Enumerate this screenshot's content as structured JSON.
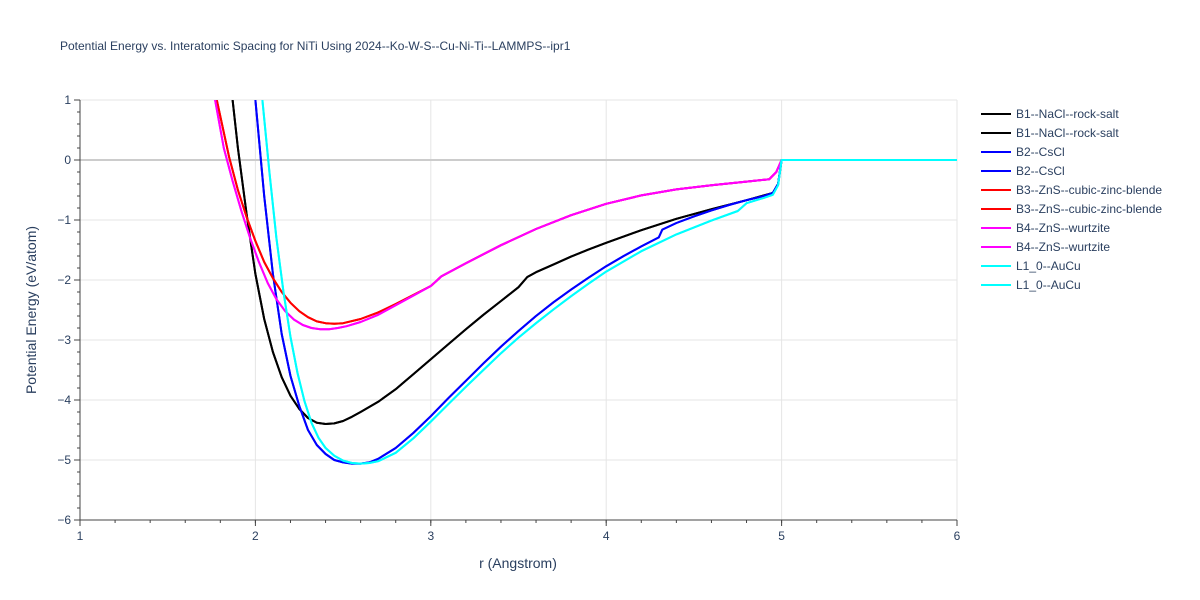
{
  "chart_data": {
    "type": "line",
    "title": "Potential Energy vs. Interatomic Spacing for NiTi Using 2024--Ko-W-S--Cu-Ni-Ti--LAMMPS--ipr1",
    "xlabel": "r (Angstrom)",
    "ylabel": "Potential Energy (eV/atom)",
    "xlim": [
      1,
      6
    ],
    "ylim": [
      -6,
      1
    ],
    "xticks": [
      "1",
      "2",
      "3",
      "4",
      "5",
      "6"
    ],
    "yticks": [
      "1",
      "0",
      "−1",
      "−2",
      "−3",
      "−4",
      "−5",
      "−6"
    ],
    "grid": true,
    "legend_position": "right",
    "series": [
      {
        "name": "B1--NaCl--rock-salt",
        "color": "#000000",
        "x": [
          1.87,
          1.9,
          1.95,
          2.0,
          2.05,
          2.1,
          2.15,
          2.2,
          2.25,
          2.3,
          2.35,
          2.4,
          2.45,
          2.5,
          2.55,
          2.6,
          2.7,
          2.8,
          2.9,
          3.0,
          3.1,
          3.2,
          3.3,
          3.4,
          3.5,
          3.55,
          3.6,
          3.7,
          3.8,
          3.9,
          4.0,
          4.2,
          4.4,
          4.6,
          4.8,
          4.95,
          4.98,
          5.0,
          5.5,
          6.0
        ],
        "y": [
          1.0,
          0.2,
          -0.9,
          -1.9,
          -2.65,
          -3.2,
          -3.62,
          -3.93,
          -4.15,
          -4.3,
          -4.38,
          -4.4,
          -4.39,
          -4.35,
          -4.28,
          -4.2,
          -4.03,
          -3.82,
          -3.57,
          -3.32,
          -3.07,
          -2.82,
          -2.58,
          -2.35,
          -2.12,
          -1.95,
          -1.87,
          -1.74,
          -1.61,
          -1.49,
          -1.38,
          -1.17,
          -0.98,
          -0.82,
          -0.67,
          -0.55,
          -0.4,
          0.0,
          0.0,
          0.0
        ]
      },
      {
        "name": "B1--NaCl--rock-salt",
        "color": "#000000",
        "x": [
          1.87,
          1.9,
          1.95,
          2.0,
          2.05,
          2.1,
          2.15,
          2.2,
          2.25,
          2.3,
          2.35,
          2.4,
          2.45,
          2.5,
          2.55,
          2.6,
          2.7,
          2.8,
          2.9,
          3.0,
          3.1,
          3.2,
          3.3,
          3.4,
          3.5,
          3.55,
          3.6,
          3.7,
          3.8,
          3.9,
          4.0,
          4.2,
          4.4,
          4.6,
          4.8,
          4.95,
          4.98,
          5.0,
          5.5,
          6.0
        ],
        "y": [
          1.0,
          0.2,
          -0.9,
          -1.9,
          -2.65,
          -3.2,
          -3.62,
          -3.93,
          -4.15,
          -4.3,
          -4.38,
          -4.4,
          -4.39,
          -4.35,
          -4.28,
          -4.2,
          -4.03,
          -3.82,
          -3.57,
          -3.32,
          -3.07,
          -2.82,
          -2.58,
          -2.35,
          -2.12,
          -1.95,
          -1.87,
          -1.74,
          -1.61,
          -1.49,
          -1.38,
          -1.17,
          -0.98,
          -0.82,
          -0.67,
          -0.55,
          -0.4,
          0.0,
          0.0,
          0.0
        ]
      },
      {
        "name": "B2--CsCl",
        "color": "#0000ff",
        "x": [
          2.0,
          2.05,
          2.1,
          2.15,
          2.2,
          2.25,
          2.3,
          2.35,
          2.4,
          2.45,
          2.5,
          2.55,
          2.6,
          2.65,
          2.7,
          2.8,
          2.9,
          3.0,
          3.1,
          3.2,
          3.3,
          3.4,
          3.5,
          3.6,
          3.7,
          3.8,
          3.9,
          4.0,
          4.1,
          4.2,
          4.3,
          4.32,
          4.4,
          4.5,
          4.6,
          4.7,
          4.8,
          4.9,
          4.95,
          4.98,
          5.0,
          5.5,
          6.0
        ],
        "y": [
          1.0,
          -0.6,
          -1.9,
          -2.9,
          -3.6,
          -4.1,
          -4.5,
          -4.75,
          -4.9,
          -5.0,
          -5.04,
          -5.06,
          -5.06,
          -5.04,
          -4.98,
          -4.8,
          -4.55,
          -4.27,
          -3.97,
          -3.68,
          -3.39,
          -3.11,
          -2.85,
          -2.6,
          -2.37,
          -2.16,
          -1.96,
          -1.77,
          -1.6,
          -1.44,
          -1.29,
          -1.16,
          -1.05,
          -0.94,
          -0.84,
          -0.75,
          -0.67,
          -0.6,
          -0.55,
          -0.4,
          0.0,
          0.0,
          0.0
        ]
      },
      {
        "name": "B2--CsCl",
        "color": "#0000ff",
        "x": [
          2.0,
          2.05,
          2.1,
          2.15,
          2.2,
          2.25,
          2.3,
          2.35,
          2.4,
          2.45,
          2.5,
          2.55,
          2.6,
          2.65,
          2.7,
          2.8,
          2.9,
          3.0,
          3.1,
          3.2,
          3.3,
          3.4,
          3.5,
          3.6,
          3.7,
          3.8,
          3.9,
          4.0,
          4.1,
          4.2,
          4.3,
          4.32,
          4.4,
          4.5,
          4.6,
          4.7,
          4.8,
          4.9,
          4.95,
          4.98,
          5.0,
          5.5,
          6.0
        ],
        "y": [
          1.0,
          -0.6,
          -1.9,
          -2.9,
          -3.6,
          -4.1,
          -4.5,
          -4.75,
          -4.9,
          -5.0,
          -5.04,
          -5.06,
          -5.06,
          -5.04,
          -4.98,
          -4.8,
          -4.55,
          -4.27,
          -3.97,
          -3.68,
          -3.39,
          -3.11,
          -2.85,
          -2.6,
          -2.37,
          -2.16,
          -1.96,
          -1.77,
          -1.6,
          -1.44,
          -1.29,
          -1.16,
          -1.05,
          -0.94,
          -0.84,
          -0.75,
          -0.67,
          -0.6,
          -0.55,
          -0.4,
          0.0,
          0.0,
          0.0
        ]
      },
      {
        "name": "B3--ZnS--cubic-zinc-blende",
        "color": "#ff0000",
        "x": [
          1.78,
          1.85,
          1.9,
          1.95,
          2.0,
          2.05,
          2.1,
          2.15,
          2.2,
          2.25,
          2.3,
          2.35,
          2.4,
          2.45,
          2.5,
          2.6,
          2.7,
          2.8,
          2.9,
          3.0,
          3.03,
          3.06,
          3.2,
          3.4,
          3.6,
          3.8,
          4.0,
          4.2,
          4.4,
          4.6,
          4.8,
          4.93,
          4.97,
          5.0,
          5.5,
          6.0
        ],
        "y": [
          1.0,
          0.05,
          -0.5,
          -0.95,
          -1.35,
          -1.7,
          -1.97,
          -2.2,
          -2.38,
          -2.52,
          -2.62,
          -2.69,
          -2.72,
          -2.73,
          -2.72,
          -2.65,
          -2.54,
          -2.4,
          -2.25,
          -2.1,
          -2.02,
          -1.94,
          -1.72,
          -1.42,
          -1.15,
          -0.92,
          -0.73,
          -0.59,
          -0.49,
          -0.42,
          -0.36,
          -0.32,
          -0.2,
          0.0,
          0.0,
          0.0
        ]
      },
      {
        "name": "B3--ZnS--cubic-zinc-blende",
        "color": "#ff0000",
        "x": [
          1.78,
          1.85,
          1.9,
          1.95,
          2.0,
          2.05,
          2.1,
          2.15,
          2.2,
          2.25,
          2.3,
          2.35,
          2.4,
          2.45,
          2.5,
          2.6,
          2.7,
          2.8,
          2.9,
          3.0,
          3.03,
          3.06,
          3.2,
          3.4,
          3.6,
          3.8,
          4.0,
          4.2,
          4.4,
          4.6,
          4.8,
          4.93,
          4.97,
          5.0,
          5.5,
          6.0
        ],
        "y": [
          1.0,
          0.05,
          -0.5,
          -0.95,
          -1.35,
          -1.7,
          -1.97,
          -2.2,
          -2.38,
          -2.52,
          -2.62,
          -2.69,
          -2.72,
          -2.73,
          -2.72,
          -2.65,
          -2.54,
          -2.4,
          -2.25,
          -2.1,
          -2.02,
          -1.94,
          -1.72,
          -1.42,
          -1.15,
          -0.92,
          -0.73,
          -0.59,
          -0.49,
          -0.42,
          -0.36,
          -0.32,
          -0.2,
          0.0,
          0.0,
          0.0
        ]
      },
      {
        "name": "B4--ZnS--wurtzite",
        "color": "#ff00ff",
        "x": [
          1.77,
          1.82,
          1.87,
          1.92,
          1.97,
          2.02,
          2.07,
          2.12,
          2.17,
          2.22,
          2.27,
          2.32,
          2.37,
          2.42,
          2.47,
          2.52,
          2.6,
          2.7,
          2.8,
          2.9,
          3.0,
          3.03,
          3.06,
          3.2,
          3.4,
          3.6,
          3.8,
          4.0,
          4.2,
          4.4,
          4.6,
          4.8,
          4.93,
          4.97,
          5.0,
          5.5,
          6.0
        ],
        "y": [
          1.0,
          0.2,
          -0.35,
          -0.85,
          -1.3,
          -1.7,
          -2.05,
          -2.32,
          -2.52,
          -2.66,
          -2.75,
          -2.8,
          -2.82,
          -2.82,
          -2.8,
          -2.77,
          -2.7,
          -2.58,
          -2.42,
          -2.26,
          -2.1,
          -2.02,
          -1.94,
          -1.72,
          -1.42,
          -1.15,
          -0.92,
          -0.73,
          -0.59,
          -0.49,
          -0.42,
          -0.36,
          -0.32,
          -0.2,
          0.0,
          0.0,
          0.0
        ]
      },
      {
        "name": "B4--ZnS--wurtzite",
        "color": "#ff00ff",
        "x": [
          1.77,
          1.82,
          1.87,
          1.92,
          1.97,
          2.02,
          2.07,
          2.12,
          2.17,
          2.22,
          2.27,
          2.32,
          2.37,
          2.42,
          2.47,
          2.52,
          2.6,
          2.7,
          2.8,
          2.9,
          3.0,
          3.03,
          3.06,
          3.2,
          3.4,
          3.6,
          3.8,
          4.0,
          4.2,
          4.4,
          4.6,
          4.8,
          4.93,
          4.97,
          5.0,
          5.5,
          6.0
        ],
        "y": [
          1.0,
          0.2,
          -0.35,
          -0.85,
          -1.3,
          -1.7,
          -2.05,
          -2.32,
          -2.52,
          -2.66,
          -2.75,
          -2.8,
          -2.82,
          -2.82,
          -2.8,
          -2.77,
          -2.7,
          -2.58,
          -2.42,
          -2.26,
          -2.1,
          -2.02,
          -1.94,
          -1.72,
          -1.42,
          -1.15,
          -0.92,
          -0.73,
          -0.59,
          -0.49,
          -0.42,
          -0.36,
          -0.32,
          -0.2,
          0.0,
          0.0,
          0.0
        ]
      },
      {
        "name": "L1_0--AuCu",
        "color": "#00ffff",
        "x": [
          2.04,
          2.08,
          2.12,
          2.16,
          2.2,
          2.24,
          2.28,
          2.32,
          2.36,
          2.4,
          2.45,
          2.5,
          2.55,
          2.6,
          2.65,
          2.7,
          2.8,
          2.9,
          3.0,
          3.1,
          3.2,
          3.3,
          3.4,
          3.5,
          3.6,
          3.7,
          3.8,
          3.9,
          4.0,
          4.2,
          4.4,
          4.6,
          4.75,
          4.8,
          4.9,
          4.95,
          4.98,
          5.0,
          5.5,
          6.0
        ],
        "y": [
          1.0,
          -0.2,
          -1.3,
          -2.2,
          -2.95,
          -3.55,
          -4.02,
          -4.38,
          -4.63,
          -4.8,
          -4.93,
          -5.01,
          -5.05,
          -5.06,
          -5.05,
          -5.02,
          -4.88,
          -4.64,
          -4.36,
          -4.07,
          -3.78,
          -3.5,
          -3.22,
          -2.96,
          -2.72,
          -2.49,
          -2.27,
          -2.06,
          -1.86,
          -1.52,
          -1.24,
          -1.01,
          -0.85,
          -0.72,
          -0.63,
          -0.58,
          -0.42,
          0.0,
          0.0,
          0.0
        ]
      },
      {
        "name": "L1_0--AuCu",
        "color": "#00ffff",
        "x": [
          2.04,
          2.08,
          2.12,
          2.16,
          2.2,
          2.24,
          2.28,
          2.32,
          2.36,
          2.4,
          2.45,
          2.5,
          2.55,
          2.6,
          2.65,
          2.7,
          2.8,
          2.9,
          3.0,
          3.1,
          3.2,
          3.3,
          3.4,
          3.5,
          3.6,
          3.7,
          3.8,
          3.9,
          4.0,
          4.2,
          4.4,
          4.6,
          4.75,
          4.8,
          4.9,
          4.95,
          4.98,
          5.0,
          5.5,
          6.0
        ],
        "y": [
          1.0,
          -0.2,
          -1.3,
          -2.2,
          -2.95,
          -3.55,
          -4.02,
          -4.38,
          -4.63,
          -4.8,
          -4.93,
          -5.01,
          -5.05,
          -5.06,
          -5.05,
          -5.02,
          -4.88,
          -4.64,
          -4.36,
          -4.07,
          -3.78,
          -3.5,
          -3.22,
          -2.96,
          -2.72,
          -2.49,
          -2.27,
          -2.06,
          -1.86,
          -1.52,
          -1.24,
          -1.01,
          -0.85,
          -0.72,
          -0.63,
          -0.58,
          -0.42,
          0.0,
          0.0,
          0.0
        ]
      }
    ]
  }
}
